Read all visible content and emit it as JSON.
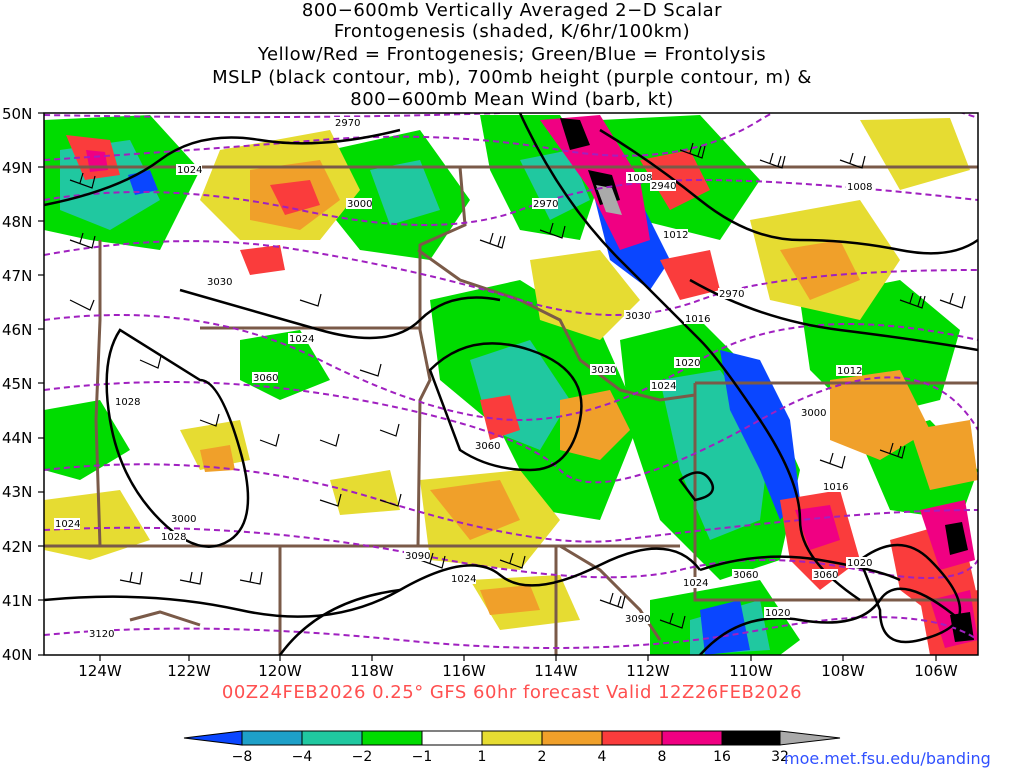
{
  "title": {
    "lines": [
      "800−600mb Vertically Averaged 2−D Scalar",
      "Frontogenesis (shaded, K/6hr/100km)",
      "Yellow/Red = Frontogenesis;  Green/Blue = Frontolysis",
      "MSLP (black contour, mb), 700mb height (purple contour, m) &",
      "800−600mb Mean Wind (barb, kt)"
    ]
  },
  "map": {
    "lat_labels": [
      "50N",
      "49N",
      "48N",
      "47N",
      "46N",
      "45N",
      "44N",
      "43N",
      "42N",
      "41N",
      "40N"
    ],
    "lon_labels": [
      "124W",
      "122W",
      "120W",
      "118W",
      "116W",
      "114W",
      "112W",
      "110W",
      "108W",
      "106W"
    ],
    "mslp_labels": [
      "1024",
      "1008",
      "1012",
      "1016",
      "1020",
      "1024",
      "1028",
      "1016",
      "1024",
      "1020",
      "1020",
      "1012",
      "1008",
      "1024",
      "1028",
      "1024",
      "1024"
    ],
    "height_labels": [
      "2970",
      "3000",
      "2970",
      "2940",
      "3030",
      "3060",
      "3030",
      "3060",
      "3000",
      "3090",
      "3060",
      "3090",
      "3120",
      "3030",
      "3060",
      "3000",
      "2970"
    ],
    "colors": {
      "mslp": "#000000",
      "height": "#a020c0",
      "state_borders": "#7a5a48",
      "frontogenesis_yellow": "#e6dc32",
      "frontogenesis_orange": "#f0a02a",
      "frontogenesis_red": "#fa3c3c",
      "frontogenesis_magenta": "#f00082",
      "frontolysis_green": "#00dc00",
      "frontolysis_teal": "#20c8a0",
      "frontolysis_blue": "#0a46ff"
    }
  },
  "footer": "00Z24FEB2026 0.25° GFS 60hr forecast Valid 12Z26FEB2026",
  "colorbar": {
    "labels": [
      "−8",
      "−4",
      "−2",
      "−1",
      "1",
      "2",
      "4",
      "8",
      "16",
      "32"
    ],
    "colors": [
      "#0a46ff",
      "#1ea0c8",
      "#20c8a0",
      "#00dc00",
      "#ffffff",
      "#e6dc32",
      "#f0a02a",
      "#fa3c3c",
      "#f00082",
      "#000000",
      "#aaaaaa"
    ]
  },
  "credit": "moe.met.fsu.edu/banding"
}
